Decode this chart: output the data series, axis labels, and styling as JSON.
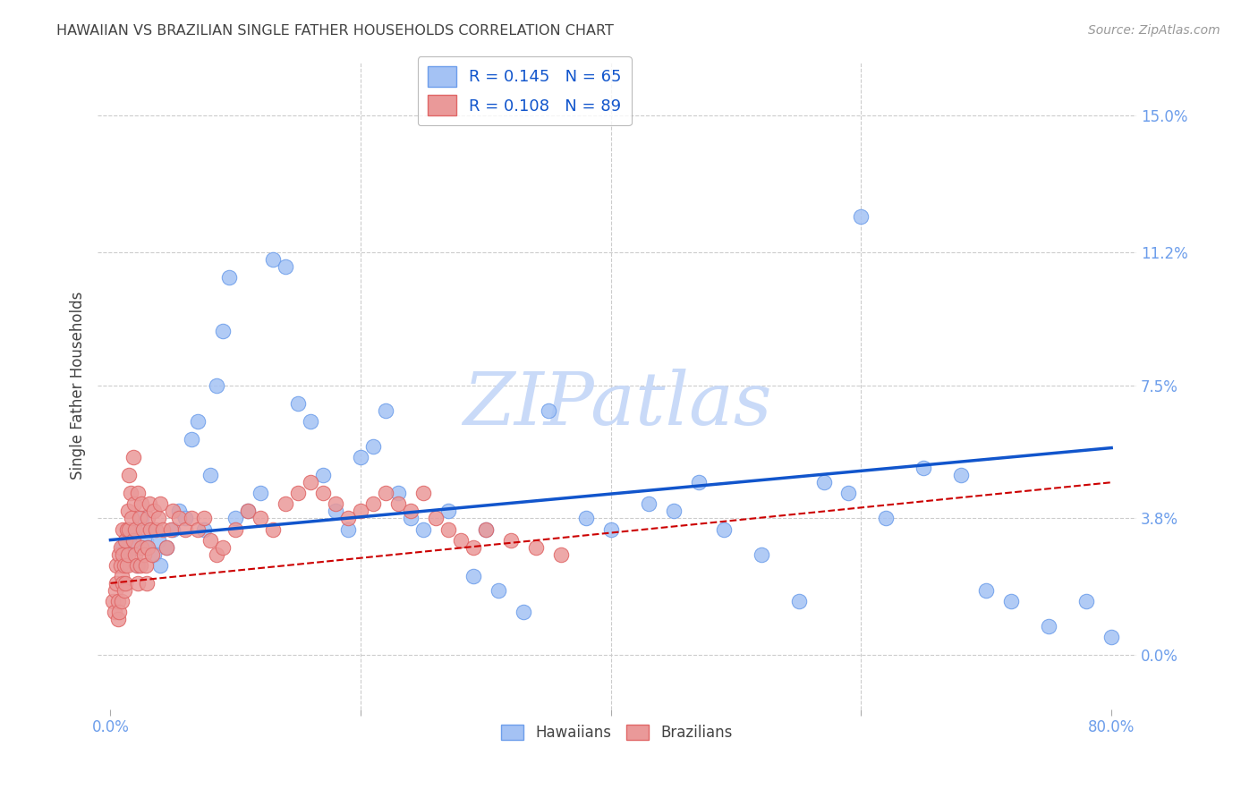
{
  "title": "HAWAIIAN VS BRAZILIAN SINGLE FATHER HOUSEHOLDS CORRELATION CHART",
  "source": "Source: ZipAtlas.com",
  "ylabel": "Single Father Households",
  "ytick_labels": [
    "0.0%",
    "3.8%",
    "7.5%",
    "11.2%",
    "15.0%"
  ],
  "ytick_values": [
    0.0,
    3.8,
    7.5,
    11.2,
    15.0
  ],
  "xtick_values": [
    0.0,
    20.0,
    40.0,
    60.0,
    80.0
  ],
  "xtick_labels": [
    "0.0%",
    "",
    "",
    "",
    "80.0%"
  ],
  "xlim": [
    -1.0,
    82.0
  ],
  "ylim": [
    -1.5,
    16.5
  ],
  "hawaiian_R": 0.145,
  "hawaiian_N": 65,
  "brazilian_R": 0.108,
  "brazilian_N": 89,
  "hawaiian_color": "#a4c2f4",
  "hawaiian_edge_color": "#6d9eeb",
  "brazilian_color": "#ea9999",
  "brazilian_edge_color": "#e06666",
  "trendline_hawaiian_color": "#1155cc",
  "trendline_brazilian_color": "#cc0000",
  "background_color": "#ffffff",
  "grid_color": "#cccccc",
  "title_color": "#434343",
  "axis_label_color": "#434343",
  "tick_color": "#6d9eeb",
  "watermark_color": "#c9daf8",
  "legend_label_color": "#1155cc",
  "hawaiian_x": [
    1.0,
    1.2,
    1.5,
    1.8,
    2.0,
    2.2,
    2.5,
    2.8,
    3.0,
    3.2,
    3.5,
    3.8,
    4.0,
    4.5,
    5.0,
    5.5,
    6.0,
    6.5,
    7.0,
    7.5,
    8.0,
    8.5,
    9.0,
    9.5,
    10.0,
    11.0,
    12.0,
    13.0,
    14.0,
    15.0,
    16.0,
    17.0,
    18.0,
    19.0,
    20.0,
    21.0,
    22.0,
    23.0,
    24.0,
    25.0,
    27.0,
    29.0,
    30.0,
    31.0,
    33.0,
    35.0,
    38.0,
    40.0,
    43.0,
    45.0,
    47.0,
    49.0,
    52.0,
    55.0,
    57.0,
    59.0,
    60.0,
    62.0,
    65.0,
    68.0,
    70.0,
    72.0,
    75.0,
    78.0,
    80.0
  ],
  "hawaiian_y": [
    3.0,
    2.8,
    3.2,
    3.5,
    3.0,
    2.5,
    3.8,
    3.2,
    3.0,
    3.5,
    2.8,
    3.2,
    2.5,
    3.0,
    3.5,
    4.0,
    3.8,
    6.0,
    6.5,
    3.5,
    5.0,
    7.5,
    9.0,
    10.5,
    3.8,
    4.0,
    4.5,
    11.0,
    10.8,
    7.0,
    6.5,
    5.0,
    4.0,
    3.5,
    5.5,
    5.8,
    6.8,
    4.5,
    3.8,
    3.5,
    4.0,
    2.2,
    3.5,
    1.8,
    1.2,
    6.8,
    3.8,
    3.5,
    4.2,
    4.0,
    4.8,
    3.5,
    2.8,
    1.5,
    4.8,
    4.5,
    12.2,
    3.8,
    5.2,
    5.0,
    1.8,
    1.5,
    0.8,
    1.5,
    0.5
  ],
  "brazilian_x": [
    0.2,
    0.3,
    0.4,
    0.5,
    0.5,
    0.6,
    0.6,
    0.7,
    0.7,
    0.8,
    0.8,
    0.9,
    0.9,
    1.0,
    1.0,
    1.0,
    1.1,
    1.1,
    1.2,
    1.2,
    1.3,
    1.3,
    1.4,
    1.4,
    1.5,
    1.5,
    1.6,
    1.7,
    1.8,
    1.8,
    1.9,
    2.0,
    2.0,
    2.1,
    2.2,
    2.2,
    2.3,
    2.4,
    2.5,
    2.5,
    2.6,
    2.7,
    2.8,
    2.9,
    3.0,
    3.0,
    3.1,
    3.2,
    3.3,
    3.5,
    3.6,
    3.8,
    4.0,
    4.2,
    4.5,
    4.8,
    5.0,
    5.5,
    6.0,
    6.5,
    7.0,
    7.5,
    8.0,
    8.5,
    9.0,
    10.0,
    11.0,
    12.0,
    13.0,
    14.0,
    15.0,
    16.0,
    17.0,
    18.0,
    19.0,
    20.0,
    21.0,
    22.0,
    23.0,
    24.0,
    25.0,
    26.0,
    27.0,
    28.0,
    29.0,
    30.0,
    32.0,
    34.0,
    36.0
  ],
  "brazilian_y": [
    1.5,
    1.2,
    1.8,
    2.0,
    2.5,
    1.0,
    1.5,
    1.2,
    2.8,
    2.5,
    3.0,
    1.5,
    2.2,
    2.0,
    3.5,
    2.8,
    1.8,
    2.5,
    2.0,
    3.2,
    2.5,
    3.5,
    2.8,
    4.0,
    3.5,
    5.0,
    4.5,
    3.8,
    3.2,
    5.5,
    4.2,
    2.8,
    3.5,
    2.5,
    2.0,
    4.5,
    3.8,
    2.5,
    3.0,
    4.2,
    3.5,
    2.8,
    2.5,
    2.0,
    3.0,
    3.8,
    4.2,
    3.5,
    2.8,
    4.0,
    3.5,
    3.8,
    4.2,
    3.5,
    3.0,
    3.5,
    4.0,
    3.8,
    3.5,
    3.8,
    3.5,
    3.8,
    3.2,
    2.8,
    3.0,
    3.5,
    4.0,
    3.8,
    3.5,
    4.2,
    4.5,
    4.8,
    4.5,
    4.2,
    3.8,
    4.0,
    4.2,
    4.5,
    4.2,
    4.0,
    4.5,
    3.8,
    3.5,
    3.2,
    3.0,
    3.5,
    3.2,
    3.0,
    2.8
  ]
}
